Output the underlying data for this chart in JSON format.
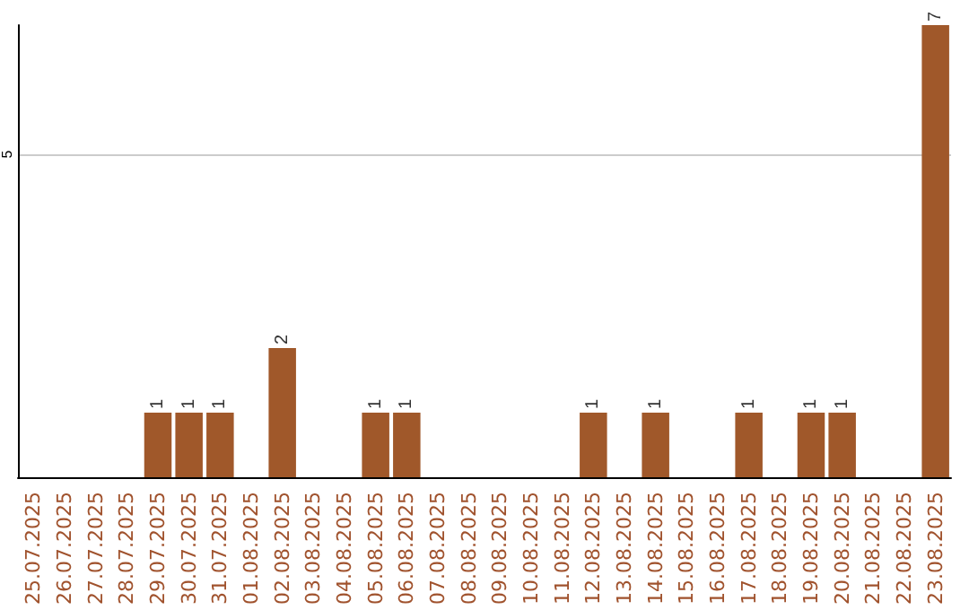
{
  "chart_data": {
    "type": "bar",
    "categories": [
      "25.07.2025",
      "26.07.2025",
      "27.07.2025",
      "28.07.2025",
      "29.07.2025",
      "30.07.2025",
      "31.07.2025",
      "01.08.2025",
      "02.08.2025",
      "03.08.2025",
      "04.08.2025",
      "05.08.2025",
      "06.08.2025",
      "07.08.2025",
      "08.08.2025",
      "09.08.2025",
      "10.08.2025",
      "11.08.2025",
      "12.08.2025",
      "13.08.2025",
      "14.08.2025",
      "15.08.2025",
      "16.08.2025",
      "17.08.2025",
      "18.08.2025",
      "19.08.2025",
      "20.08.2025",
      "21.08.2025",
      "22.08.2025",
      "23.08.2025"
    ],
    "values": [
      0,
      0,
      0,
      0,
      1,
      1,
      1,
      0,
      2,
      0,
      0,
      1,
      1,
      0,
      0,
      0,
      0,
      0,
      1,
      0,
      1,
      0,
      0,
      1,
      0,
      1,
      1,
      0,
      0,
      7
    ],
    "value_labels": [
      null,
      null,
      null,
      null,
      "1",
      "1",
      "1",
      null,
      "2",
      null,
      null,
      "1",
      "1",
      null,
      null,
      null,
      null,
      null,
      "1",
      null,
      "1",
      null,
      null,
      "1",
      null,
      "1",
      "1",
      null,
      null,
      "7"
    ],
    "color": "#a0582a",
    "ylim": [
      0,
      7
    ],
    "yticks": [
      5
    ],
    "grid": "y"
  }
}
